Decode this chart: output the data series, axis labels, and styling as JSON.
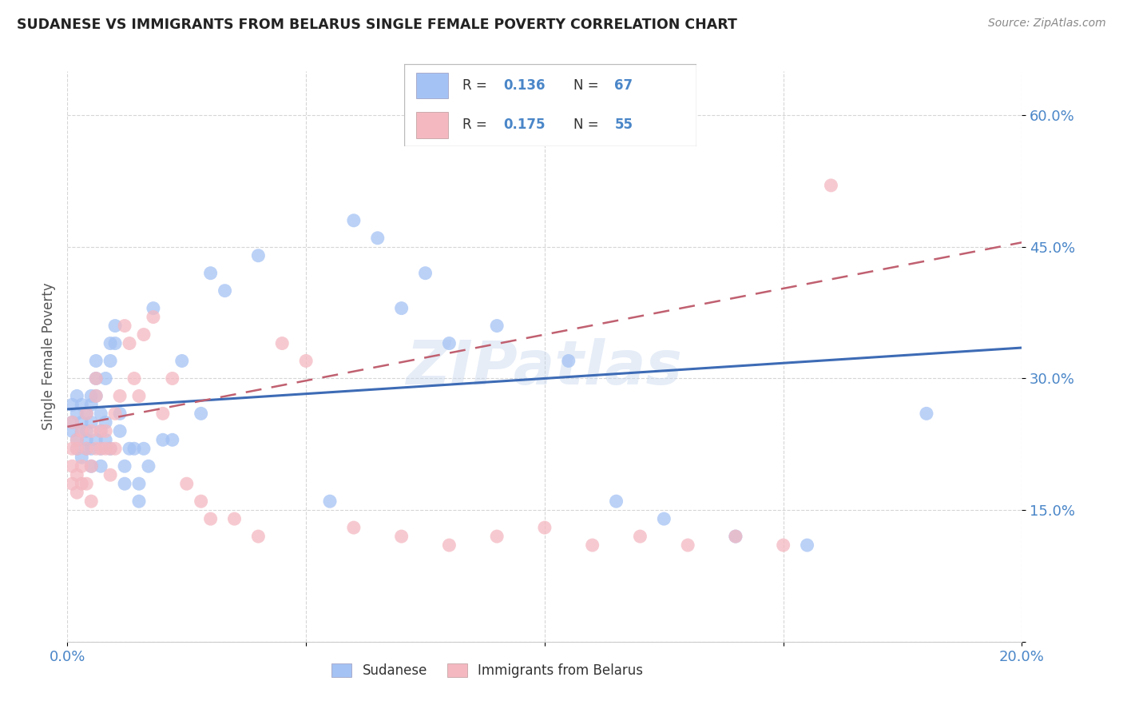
{
  "title": "SUDANESE VS IMMIGRANTS FROM BELARUS SINGLE FEMALE POVERTY CORRELATION CHART",
  "source": "Source: ZipAtlas.com",
  "ylabel": "Single Female Poverty",
  "xlim": [
    0.0,
    0.2
  ],
  "ylim": [
    0.0,
    0.65
  ],
  "yticks": [
    0.0,
    0.15,
    0.3,
    0.45,
    0.6
  ],
  "ytick_labels": [
    "",
    "15.0%",
    "30.0%",
    "45.0%",
    "60.0%"
  ],
  "xticks": [
    0.0,
    0.05,
    0.1,
    0.15,
    0.2
  ],
  "xtick_labels": [
    "0.0%",
    "",
    "",
    "",
    "20.0%"
  ],
  "legend_label1": "Sudanese",
  "legend_label2": "Immigrants from Belarus",
  "color_blue": "#a4c2f4",
  "color_pink": "#f4b8c1",
  "color_blue_line": "#3d6bb5",
  "color_pink_line": "#c06070",
  "watermark": "ZIPatlas",
  "sudanese_x": [
    0.001,
    0.001,
    0.001,
    0.002,
    0.002,
    0.002,
    0.002,
    0.003,
    0.003,
    0.003,
    0.003,
    0.004,
    0.004,
    0.004,
    0.004,
    0.005,
    0.005,
    0.005,
    0.005,
    0.005,
    0.006,
    0.006,
    0.006,
    0.006,
    0.007,
    0.007,
    0.007,
    0.007,
    0.008,
    0.008,
    0.008,
    0.009,
    0.009,
    0.009,
    0.01,
    0.01,
    0.011,
    0.011,
    0.012,
    0.012,
    0.013,
    0.014,
    0.015,
    0.015,
    0.016,
    0.017,
    0.018,
    0.02,
    0.022,
    0.024,
    0.028,
    0.03,
    0.033,
    0.04,
    0.055,
    0.06,
    0.065,
    0.07,
    0.075,
    0.08,
    0.09,
    0.105,
    0.115,
    0.125,
    0.14,
    0.155,
    0.18
  ],
  "sudanese_y": [
    0.25,
    0.27,
    0.24,
    0.28,
    0.26,
    0.23,
    0.22,
    0.27,
    0.24,
    0.21,
    0.25,
    0.22,
    0.26,
    0.24,
    0.23,
    0.27,
    0.25,
    0.22,
    0.2,
    0.28,
    0.23,
    0.28,
    0.3,
    0.32,
    0.26,
    0.24,
    0.22,
    0.2,
    0.25,
    0.23,
    0.3,
    0.34,
    0.32,
    0.22,
    0.36,
    0.34,
    0.26,
    0.24,
    0.18,
    0.2,
    0.22,
    0.22,
    0.18,
    0.16,
    0.22,
    0.2,
    0.38,
    0.23,
    0.23,
    0.32,
    0.26,
    0.42,
    0.4,
    0.44,
    0.16,
    0.48,
    0.46,
    0.38,
    0.42,
    0.34,
    0.36,
    0.32,
    0.16,
    0.14,
    0.12,
    0.11,
    0.26
  ],
  "belarus_x": [
    0.001,
    0.001,
    0.001,
    0.001,
    0.002,
    0.002,
    0.002,
    0.002,
    0.003,
    0.003,
    0.003,
    0.004,
    0.004,
    0.004,
    0.005,
    0.005,
    0.005,
    0.006,
    0.006,
    0.006,
    0.007,
    0.007,
    0.008,
    0.008,
    0.009,
    0.009,
    0.01,
    0.01,
    0.011,
    0.012,
    0.013,
    0.014,
    0.015,
    0.016,
    0.018,
    0.02,
    0.022,
    0.025,
    0.028,
    0.03,
    0.035,
    0.04,
    0.045,
    0.05,
    0.06,
    0.07,
    0.08,
    0.09,
    0.1,
    0.11,
    0.12,
    0.13,
    0.14,
    0.15,
    0.16
  ],
  "belarus_y": [
    0.22,
    0.2,
    0.25,
    0.18,
    0.22,
    0.19,
    0.23,
    0.17,
    0.24,
    0.2,
    0.18,
    0.22,
    0.26,
    0.18,
    0.24,
    0.2,
    0.16,
    0.22,
    0.3,
    0.28,
    0.24,
    0.22,
    0.24,
    0.22,
    0.22,
    0.19,
    0.26,
    0.22,
    0.28,
    0.36,
    0.34,
    0.3,
    0.28,
    0.35,
    0.37,
    0.26,
    0.3,
    0.18,
    0.16,
    0.14,
    0.14,
    0.12,
    0.34,
    0.32,
    0.13,
    0.12,
    0.11,
    0.12,
    0.13,
    0.11,
    0.12,
    0.11,
    0.12,
    0.11,
    0.52
  ],
  "blue_line_x": [
    0.0,
    0.2
  ],
  "blue_line_y": [
    0.265,
    0.335
  ],
  "pink_line_x": [
    0.0,
    0.2
  ],
  "pink_line_y": [
    0.245,
    0.455
  ]
}
